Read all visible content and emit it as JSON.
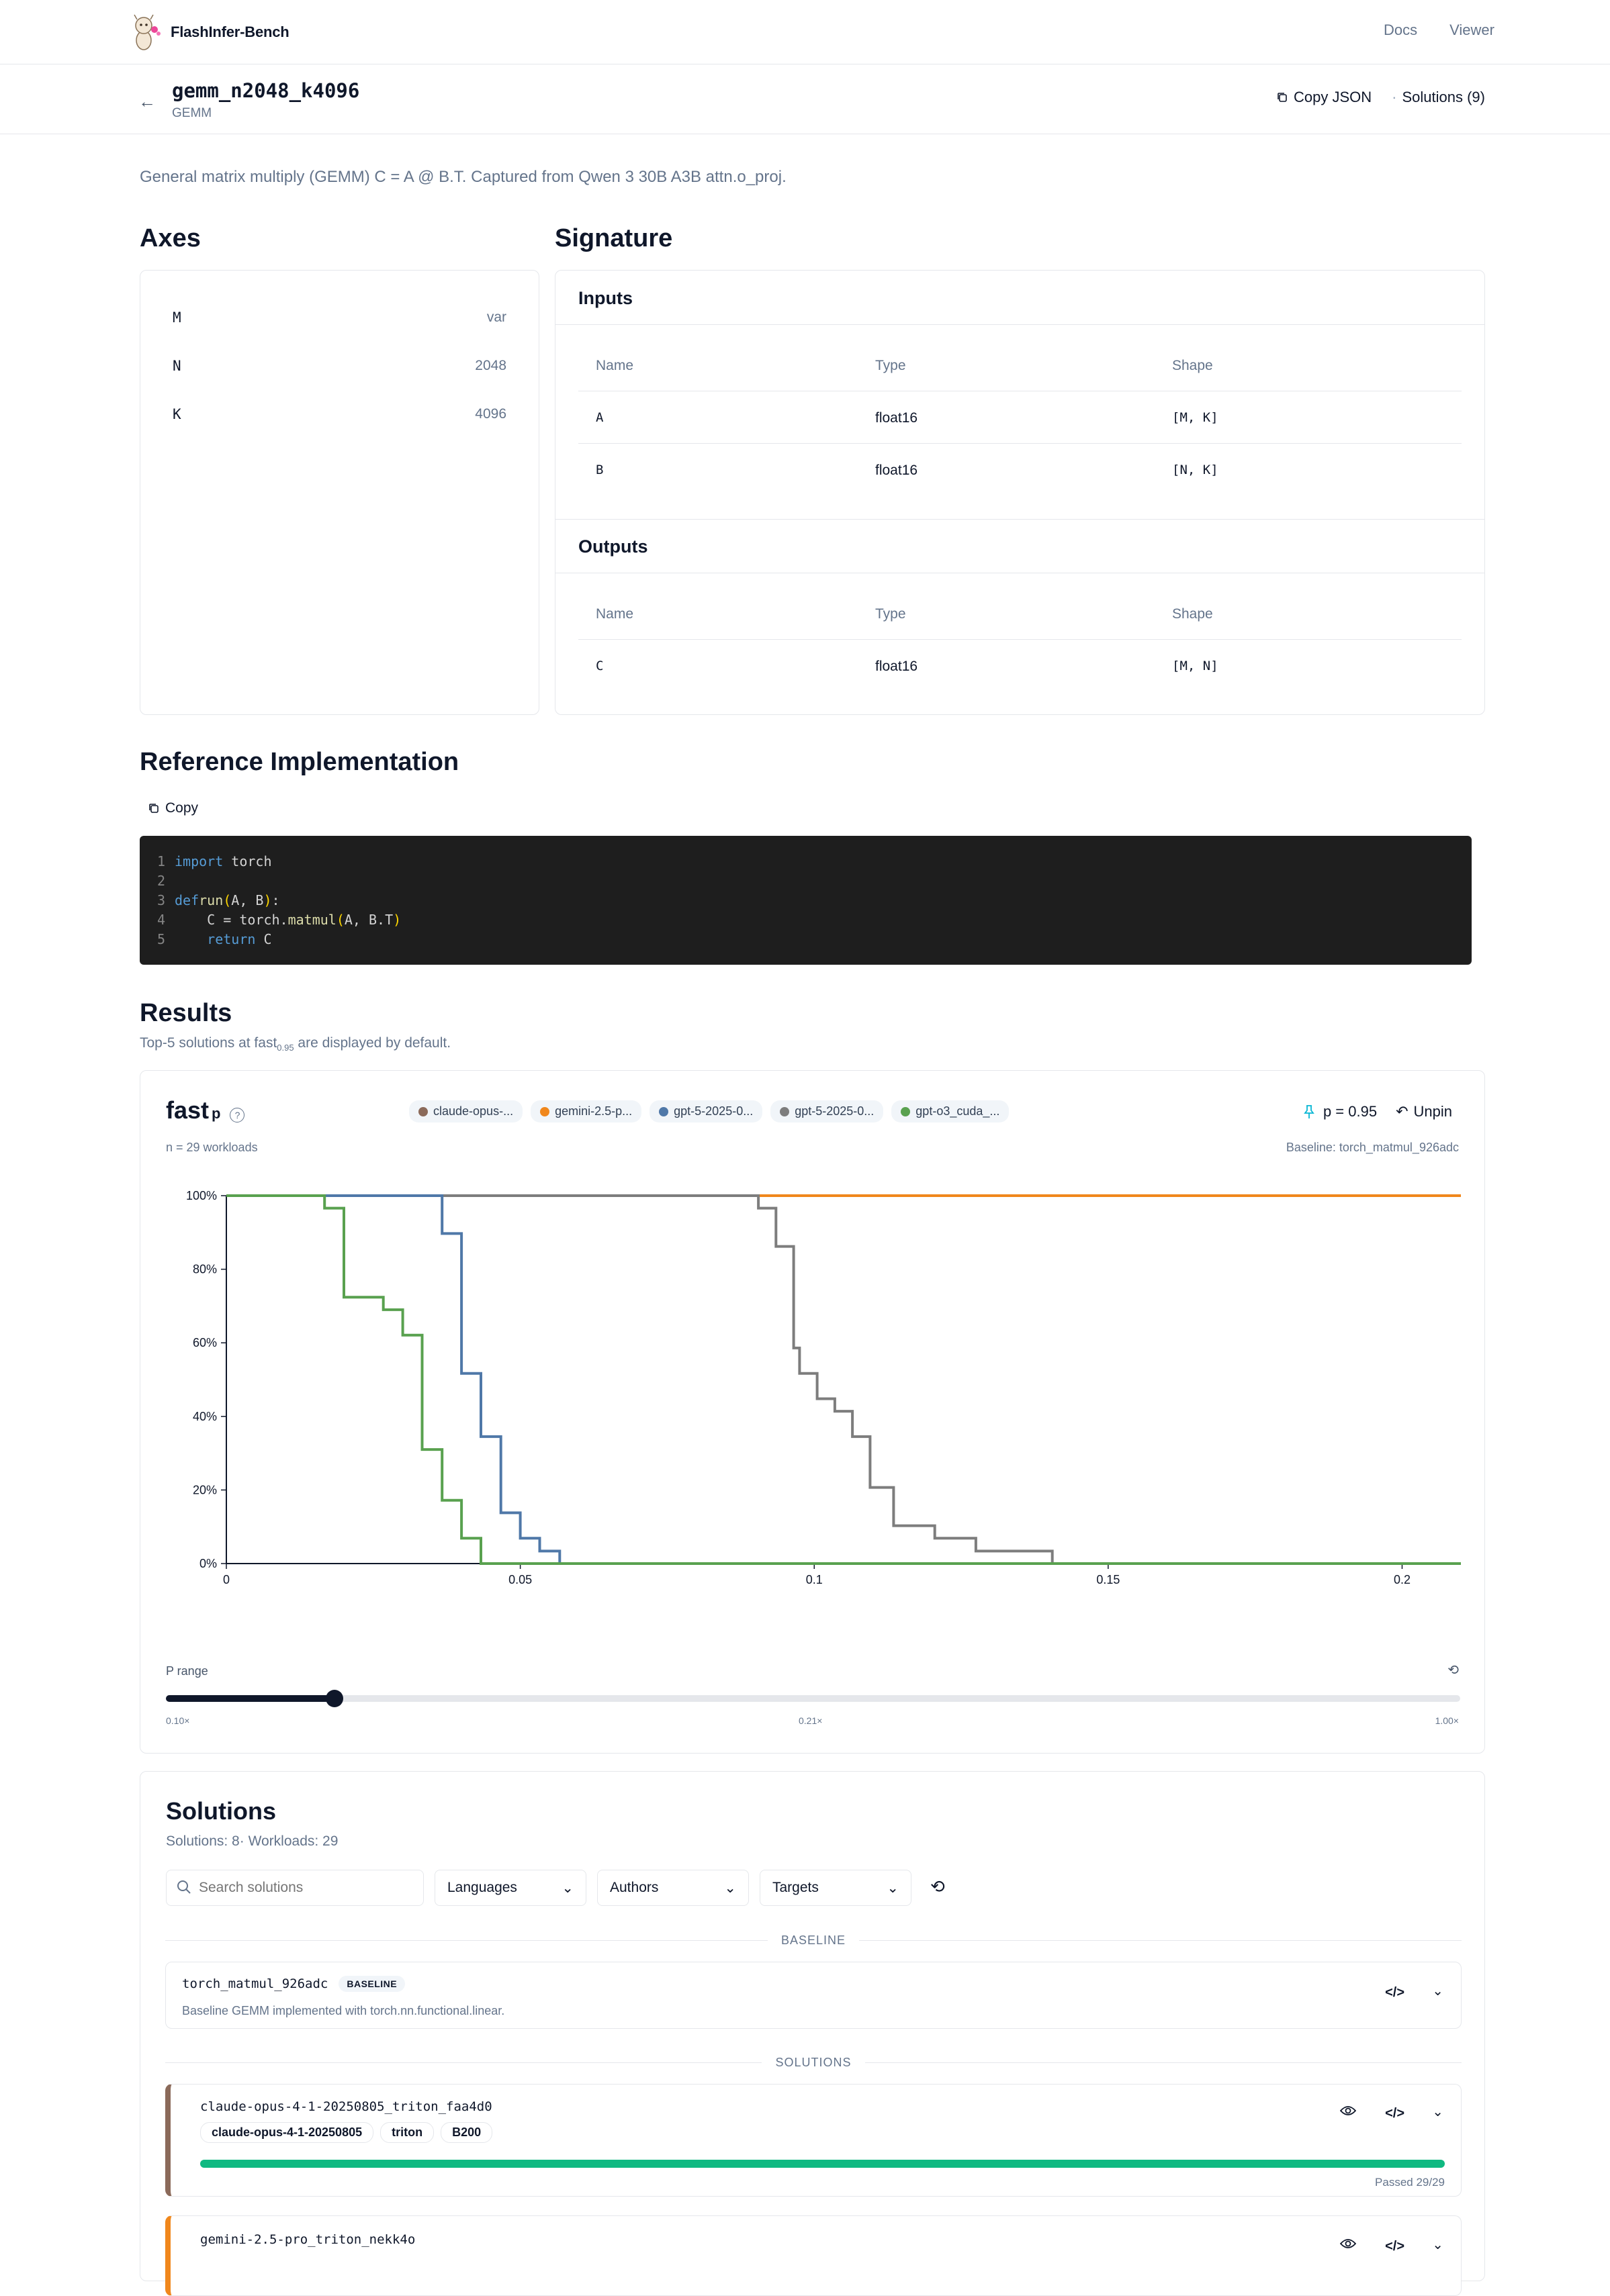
{
  "app": {
    "name": "FlashInfer-Bench"
  },
  "nav": {
    "docs": "Docs",
    "viewer": "Viewer"
  },
  "header": {
    "name": "gemm_n2048_k4096",
    "category": "GEMM",
    "copy_json": "Copy JSON",
    "solutions": "Solutions (9)"
  },
  "description": "General matrix multiply (GEMM) C = A @ B.T. Captured from Qwen 3 30B A3B attn.o_proj.",
  "axes": {
    "title": "Axes",
    "items": [
      {
        "name": "M",
        "value": "var"
      },
      {
        "name": "N",
        "value": "2048"
      },
      {
        "name": "K",
        "value": "4096"
      }
    ]
  },
  "signature": {
    "title": "Signature",
    "inputs_title": "Inputs",
    "outputs_title": "Outputs",
    "columns": [
      "Name",
      "Type",
      "Shape"
    ],
    "inputs": [
      {
        "name": "A",
        "type": "float16",
        "shape": "[M, K]"
      },
      {
        "name": "B",
        "type": "float16",
        "shape": "[N, K]"
      }
    ],
    "outputs": [
      {
        "name": "C",
        "type": "float16",
        "shape": "[M, N]"
      }
    ]
  },
  "reference": {
    "title": "Reference Implementation",
    "copy": "Copy",
    "line_numbers": [
      "1",
      "2",
      "3",
      "4",
      "5"
    ],
    "code": {
      "l1_kw": "import",
      "l1_rest": " torch",
      "l3_kw": "def",
      "l3_fn": "run",
      "l3_open": "(",
      "l3_args": "A, B",
      "l3_close": ")",
      "l3_colon": ":",
      "l4_a": "    C = torch.",
      "l4_fn": "matmul",
      "l4_open": "(",
      "l4_args": "A, B.T",
      "l4_close": ")",
      "l5_kw": "return",
      "l5_rest": " C"
    }
  },
  "results": {
    "title": "Results",
    "subtitle_pre": "Top-5 solutions at fast",
    "subtitle_sub": "0.95",
    "subtitle_post": " are displayed by default.",
    "metric": "fast",
    "metric_sub": "p",
    "help_icon": "?",
    "workloads": "n = 29 workloads",
    "baseline": "Baseline: torch_matmul_926adc",
    "p_value": "p = 0.95",
    "unpin": "Unpin",
    "legend": [
      {
        "label": "claude-opus-...",
        "color": "#8b6a5a"
      },
      {
        "label": "gemini-2.5-p...",
        "color": "#f0871c"
      },
      {
        "label": "gpt-5-2025-0...",
        "color": "#4f78a8"
      },
      {
        "label": "gpt-5-2025-0...",
        "color": "#7d7d7d"
      },
      {
        "label": "gpt-o3_cuda_...",
        "color": "#59a14f"
      }
    ],
    "p_range": {
      "label": "P range",
      "fraction": 0.13,
      "ticks": [
        "0.10×",
        "0.21×",
        "1.00×"
      ]
    }
  },
  "chart_data": {
    "type": "line",
    "ylim": [
      0,
      100
    ],
    "xlim": [
      0,
      0.21
    ],
    "y_ticks": [
      {
        "v": 0,
        "label": "0%"
      },
      {
        "v": 20,
        "label": "20%"
      },
      {
        "v": 40,
        "label": "40%"
      },
      {
        "v": 60,
        "label": "60%"
      },
      {
        "v": 80,
        "label": "80%"
      },
      {
        "v": 100,
        "label": "100%"
      }
    ],
    "x_ticks": [
      {
        "v": 0,
        "label": "0"
      },
      {
        "v": 0.05,
        "label": "0.05"
      },
      {
        "v": 0.1,
        "label": "0.1"
      },
      {
        "v": 0.15,
        "label": "0.15"
      },
      {
        "v": 0.2,
        "label": "0.2"
      }
    ],
    "series": [
      {
        "color": "#f0871c",
        "x": [
          0,
          0.21
        ],
        "y": [
          100,
          100
        ]
      },
      {
        "color": "#7d7d7d",
        "x": [
          0,
          0.0905,
          0.0905,
          0.0935,
          0.0935,
          0.0965,
          0.0965,
          0.0975,
          0.0975,
          0.1005,
          0.1005,
          0.1035,
          0.1035,
          0.1065,
          0.1065,
          0.1095,
          0.1095,
          0.1135,
          0.1135,
          0.1205,
          0.1205,
          0.1275,
          0.1275,
          0.1405,
          0.1405,
          0.1545,
          0.1545,
          0.21
        ],
        "y": [
          100,
          100,
          96.6,
          96.6,
          86.2,
          86.2,
          58.6,
          58.6,
          51.7,
          51.7,
          44.8,
          44.8,
          41.4,
          41.4,
          34.5,
          34.5,
          20.7,
          20.7,
          10.3,
          10.3,
          6.9,
          6.9,
          3.4,
          3.4,
          0,
          0,
          0,
          0
        ]
      },
      {
        "color": "#4f78a8",
        "x": [
          0,
          0.0367,
          0.0367,
          0.04,
          0.04,
          0.0433,
          0.0433,
          0.0467,
          0.0467,
          0.05,
          0.05,
          0.0533,
          0.0533,
          0.0567,
          0.0567,
          0.21
        ],
        "y": [
          100,
          100,
          89.7,
          89.7,
          51.7,
          51.7,
          34.5,
          34.5,
          13.8,
          13.8,
          6.9,
          6.9,
          3.4,
          3.4,
          0,
          0
        ]
      },
      {
        "color": "#59a14f",
        "x": [
          0,
          0.0167,
          0.0167,
          0.02,
          0.02,
          0.0267,
          0.0267,
          0.03,
          0.03,
          0.0333,
          0.0333,
          0.0367,
          0.0367,
          0.04,
          0.04,
          0.0433,
          0.0433,
          0.21
        ],
        "y": [
          100,
          100,
          96.6,
          96.6,
          72.4,
          72.4,
          69,
          69,
          62.1,
          62.1,
          31,
          31,
          17.2,
          17.2,
          6.9,
          6.9,
          0,
          0
        ]
      }
    ]
  },
  "solutions": {
    "title": "Solutions",
    "summary": "Solutions: 8· Workloads: 29",
    "search_placeholder": "Search solutions",
    "filters": {
      "languages": "Languages",
      "authors": "Authors",
      "targets": "Targets"
    },
    "baseline_label": "BASELINE",
    "solutions_label": "SOLUTIONS",
    "baseline": {
      "name": "torch_matmul_926adc",
      "badge": "BASELINE",
      "desc": "Baseline GEMM implemented with torch.nn.functional.linear."
    },
    "items": [
      {
        "name": "claude-opus-4-1-20250805_triton_faa4d0",
        "tags": [
          "claude-opus-4-1-20250805",
          "triton",
          "B200"
        ],
        "color": "#8b6a5a",
        "passed": "Passed 29/29",
        "progress": 1.0
      },
      {
        "name": "gemini-2.5-pro_triton_nekk4o",
        "color": "#f0871c"
      }
    ]
  }
}
